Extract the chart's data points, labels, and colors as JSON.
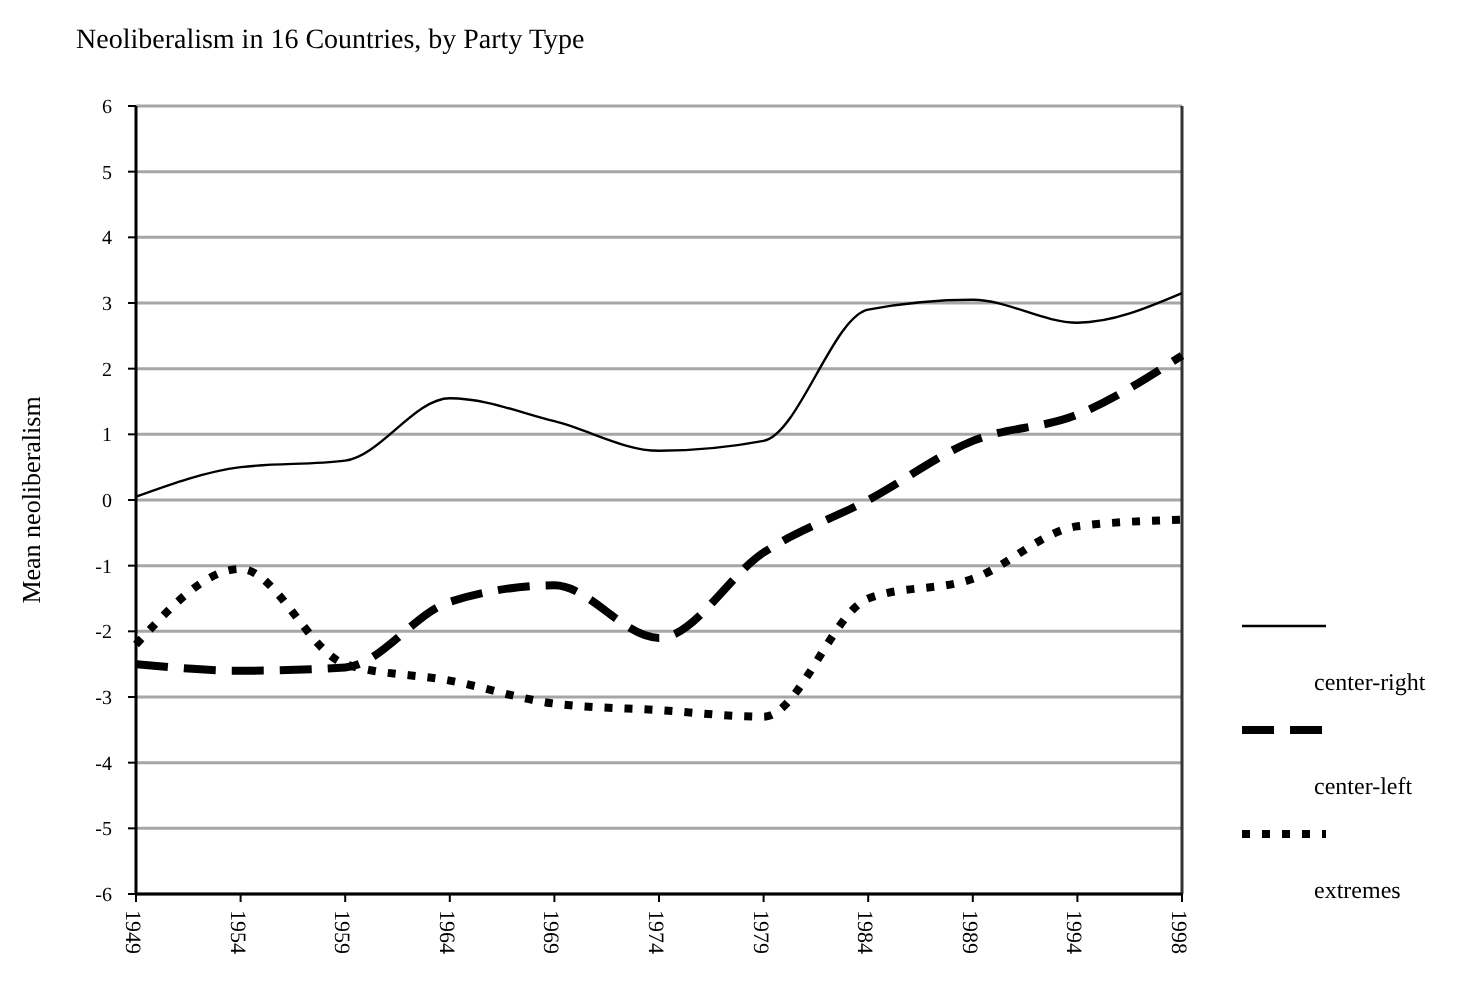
{
  "chart_data": {
    "type": "line",
    "title": "Neoliberalism in 16 Countries, by Party Type",
    "ylabel": "Mean neoliberalism",
    "categories": [
      "1949",
      "1954",
      "1959",
      "1964",
      "1969",
      "1974",
      "1979",
      "1984",
      "1989",
      "1994",
      "1998"
    ],
    "series": [
      {
        "name": "center-right",
        "color": "#000000",
        "line_style": "solid",
        "values": [
          0.05,
          0.5,
          0.6,
          1.55,
          1.2,
          0.75,
          0.9,
          2.9,
          3.05,
          2.7,
          3.15
        ]
      },
      {
        "name": "center-left",
        "color": "#000000",
        "line_style": "dashed",
        "values": [
          -2.5,
          -2.6,
          -2.55,
          -1.55,
          -1.3,
          -2.1,
          -0.8,
          0.0,
          0.9,
          1.3,
          2.2
        ]
      },
      {
        "name": "extremes",
        "color": "#000000",
        "line_style": "dotted",
        "values": [
          -2.2,
          -1.05,
          -2.5,
          -2.75,
          -3.1,
          -3.2,
          -3.3,
          -1.5,
          -1.2,
          -0.4,
          -0.3
        ]
      }
    ],
    "ylim": [
      -6,
      6
    ],
    "yticks": [
      -6,
      -5,
      -4,
      -3,
      -2,
      -1,
      0,
      1,
      2,
      3,
      4,
      5,
      6
    ],
    "grid": "y",
    "legend": "right"
  }
}
